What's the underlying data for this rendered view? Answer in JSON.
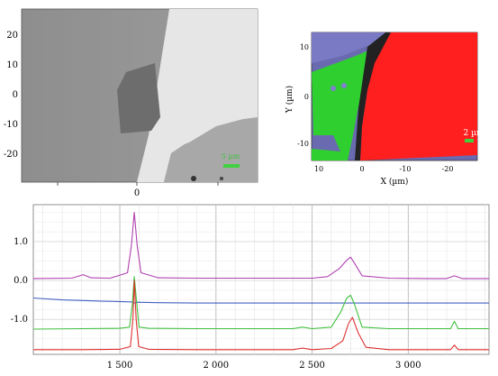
{
  "panel_a": {
    "y_ticks": [
      "20",
      "10",
      "0",
      "-10",
      "-20"
    ],
    "x_ticks": [
      "0"
    ],
    "scale_label": "5 µm"
  },
  "panel_b": {
    "y_ticks": [
      "10",
      "0",
      "-10"
    ],
    "x_ticks": [
      "10",
      "0",
      "-10",
      "-20"
    ],
    "xlabel": "X (µm)",
    "ylabel": "Y (µm)",
    "scale_label": "2 µm",
    "colors": {
      "red": "#ff1f1f",
      "green": "#2fcf2f",
      "blue": "#6a6ab0"
    }
  },
  "chart_data": {
    "type": "line",
    "x_ticks": [
      "1 500",
      "2 000",
      "2 500",
      "3 000"
    ],
    "y_ticks": [
      "1.0",
      "0.0",
      "-1.0"
    ],
    "xlim": [
      1050,
      3420
    ],
    "ylim": [
      -1.9,
      1.95
    ],
    "series": [
      {
        "color": "#b040b0",
        "x": [
          1050,
          1250,
          1310,
          1350,
          1450,
          1540,
          1560,
          1575,
          1590,
          1610,
          1700,
          1900,
          2100,
          2300,
          2500,
          2580,
          2640,
          2680,
          2700,
          2720,
          2760,
          2900,
          3100,
          3200,
          3240,
          3280,
          3420
        ],
        "y": [
          0.05,
          0.06,
          0.15,
          0.07,
          0.06,
          0.2,
          0.9,
          1.75,
          0.9,
          0.2,
          0.07,
          0.06,
          0.06,
          0.06,
          0.06,
          0.1,
          0.3,
          0.52,
          0.6,
          0.45,
          0.12,
          0.06,
          0.05,
          0.05,
          0.12,
          0.05,
          0.05
        ]
      },
      {
        "color": "#4060c0",
        "x": [
          1050,
          1200,
          1400,
          1560,
          1575,
          1590,
          1700,
          1900,
          2100,
          2300,
          2500,
          2700,
          2900,
          3100,
          3420
        ],
        "y": [
          -0.45,
          -0.5,
          -0.53,
          -0.55,
          -0.58,
          -0.56,
          -0.57,
          -0.58,
          -0.58,
          -0.58,
          -0.58,
          -0.58,
          -0.58,
          -0.58,
          -0.58
        ]
      },
      {
        "color": "#40c040",
        "x": [
          1050,
          1300,
          1500,
          1550,
          1565,
          1575,
          1588,
          1600,
          1650,
          1900,
          2200,
          2400,
          2450,
          2500,
          2600,
          2650,
          2680,
          2700,
          2720,
          2760,
          2900,
          3100,
          3220,
          3240,
          3260,
          3420
        ],
        "y": [
          -1.25,
          -1.24,
          -1.23,
          -1.2,
          -0.6,
          0.1,
          -0.6,
          -1.2,
          -1.23,
          -1.24,
          -1.24,
          -1.24,
          -1.2,
          -1.24,
          -1.2,
          -0.8,
          -0.45,
          -0.38,
          -0.6,
          -1.2,
          -1.24,
          -1.24,
          -1.24,
          -1.05,
          -1.24,
          -1.24
        ]
      },
      {
        "color": "#e03030",
        "x": [
          1050,
          1300,
          1500,
          1555,
          1568,
          1575,
          1585,
          1598,
          1650,
          1900,
          2200,
          2400,
          2450,
          2500,
          2600,
          2660,
          2690,
          2710,
          2740,
          2780,
          2900,
          3100,
          3220,
          3240,
          3260,
          3420
        ],
        "y": [
          -1.78,
          -1.78,
          -1.77,
          -1.7,
          -1.0,
          0.0,
          -1.0,
          -1.7,
          -1.77,
          -1.78,
          -1.78,
          -1.78,
          -1.74,
          -1.78,
          -1.75,
          -1.55,
          -1.1,
          -0.95,
          -1.35,
          -1.72,
          -1.78,
          -1.78,
          -1.78,
          -1.66,
          -1.78,
          -1.78
        ]
      }
    ]
  }
}
